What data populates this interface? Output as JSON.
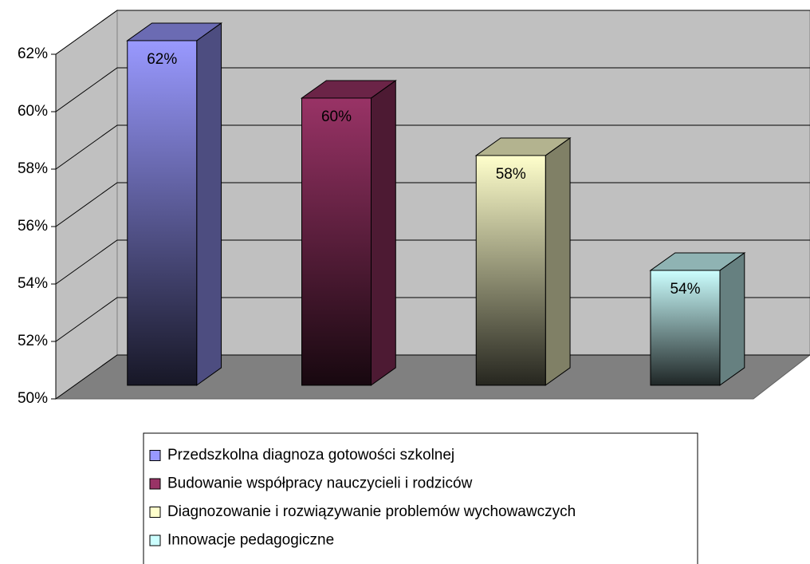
{
  "chart_data": {
    "type": "bar3d",
    "categories": [
      null
    ],
    "series": [
      {
        "name": "Przedszkolna diagnoza gotowości szkolnej",
        "color": "#9999ff",
        "values": [
          62
        ],
        "value_labels": [
          "62%"
        ]
      },
      {
        "name": "Budowanie współpracy nauczycieli i rodziców",
        "color": "#993366",
        "values": [
          60
        ],
        "value_labels": [
          "60%"
        ]
      },
      {
        "name": "Diagnozowanie i rozwiązywanie problemów wychowawczych",
        "color": "#ffffcc",
        "values": [
          58
        ],
        "value_labels": [
          "58%"
        ]
      },
      {
        "name": "Innowacje pedagogiczne",
        "color": "#ccffff",
        "values": [
          54
        ],
        "value_labels": [
          "54%"
        ]
      }
    ],
    "ylim": [
      50,
      62
    ],
    "yticks": [
      {
        "value": 50,
        "label": "50%"
      },
      {
        "value": 52,
        "label": "52%"
      },
      {
        "value": 54,
        "label": "54%"
      },
      {
        "value": 56,
        "label": "56%"
      },
      {
        "value": 58,
        "label": "58%"
      },
      {
        "value": 60,
        "label": "60%"
      },
      {
        "value": 62,
        "label": "62%"
      }
    ],
    "grid": true
  }
}
